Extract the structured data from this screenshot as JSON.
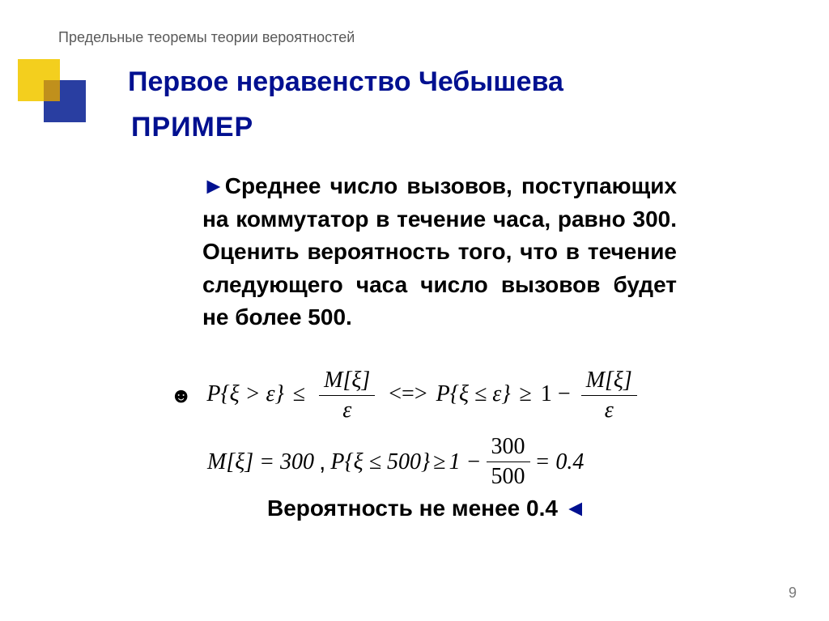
{
  "colors": {
    "title": "#001090",
    "breadcrumb": "#5a5a5a",
    "body_text": "#000000",
    "deco_yellow": "#f3cf1e",
    "deco_blue": "#293ea1",
    "deco_overlap": "#c0901c",
    "pagenum": "#7a7a7a",
    "background": "#ffffff"
  },
  "typography": {
    "body_font": "Arial",
    "math_font": "Times New Roman",
    "title_size_pt": 34,
    "body_size_pt": 28,
    "breadcrumb_size_pt": 18
  },
  "breadcrumb": "Предельные теоремы теории вероятностей",
  "title": "Первое неравенство Чебышева",
  "subtitle": "ПРИМЕР",
  "marker_start": "►",
  "body_text": "Среднее число вызовов, поступающих на коммутатор в течение часа, равно 300. Оценить вероятность того, что в течение следующего часа число вызовов будет не более 500.",
  "smiley": "☻",
  "formula1": {
    "lhs_a": "P{ξ > ε}",
    "op_a": "≤",
    "frac_a_num": "M[ξ]",
    "frac_a_den": "ε",
    "iff": "<=>",
    "lhs_b": "P{ξ ≤ ε}",
    "op_b": "≥",
    "one_minus": "1 −",
    "frac_b_num": "M[ξ]",
    "frac_b_den": "ε"
  },
  "formula2": {
    "m_eq": "M[ξ] = 300",
    "comma": ",",
    "p_expr": "P{ξ ≤ 500}",
    "geq": "≥",
    "one_minus": "1 −",
    "frac_num": "300",
    "frac_den": "500",
    "eq_result": "= 0.4"
  },
  "conclusion": "Вероятность не менее 0.4",
  "marker_end": "◄",
  "page_number": "9"
}
